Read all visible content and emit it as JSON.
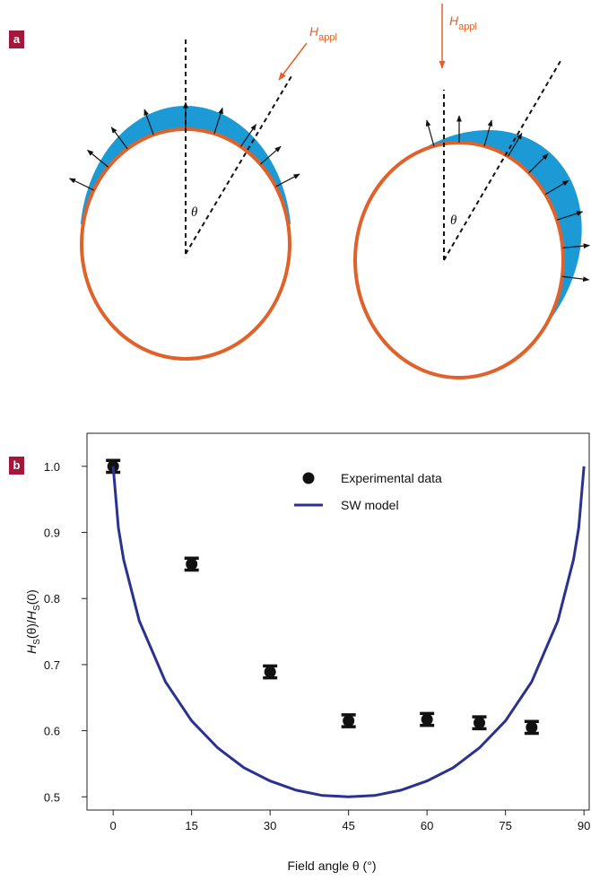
{
  "panel_labels": [
    "a",
    "b"
  ],
  "diagram": {
    "field_labels": [
      {
        "main": "H",
        "sub": "appl"
      },
      {
        "main": "H",
        "sub": "appl"
      }
    ],
    "angle_labels": [
      "θ",
      "θ"
    ]
  },
  "chart_data": {
    "type": "scatter",
    "xlabel": "Field angle θ (°)",
    "ylabel": {
      "parts": [
        "H",
        "S",
        "(θ)/",
        "H",
        "S",
        "(0)"
      ]
    },
    "xlim": [
      -5,
      91
    ],
    "ylim": [
      0.48,
      1.05
    ],
    "xticks": [
      0,
      15,
      30,
      45,
      60,
      75,
      90
    ],
    "yticks": [
      0.5,
      0.6,
      0.7,
      0.8,
      0.9,
      {
        "value": 1,
        "label": "1.0"
      }
    ],
    "legend": "upper center",
    "series": [
      {
        "name": "Experimental data",
        "kind": "scatter",
        "color": "#111111",
        "x": [
          0,
          15,
          30,
          45,
          60,
          70,
          80
        ],
        "values": [
          1.0,
          0.852,
          0.689,
          0.615,
          0.617,
          0.612,
          0.605
        ],
        "errors": [
          0.009,
          0.009,
          0.009,
          0.009,
          0.009,
          0.009,
          0.009
        ]
      },
      {
        "name": "SW model",
        "kind": "line",
        "color": "#2b3190",
        "x": [
          0,
          1,
          2,
          5,
          10,
          15,
          20,
          25,
          30,
          35,
          40,
          45,
          50,
          55,
          60,
          65,
          70,
          75,
          80,
          85,
          88,
          89,
          90
        ],
        "values": [
          1.0,
          0.907,
          0.859,
          0.766,
          0.674,
          0.615,
          0.574,
          0.544,
          0.524,
          0.51,
          0.502,
          0.5,
          0.502,
          0.51,
          0.524,
          0.544,
          0.574,
          0.615,
          0.674,
          0.766,
          0.859,
          0.907,
          1.0
        ]
      }
    ]
  }
}
